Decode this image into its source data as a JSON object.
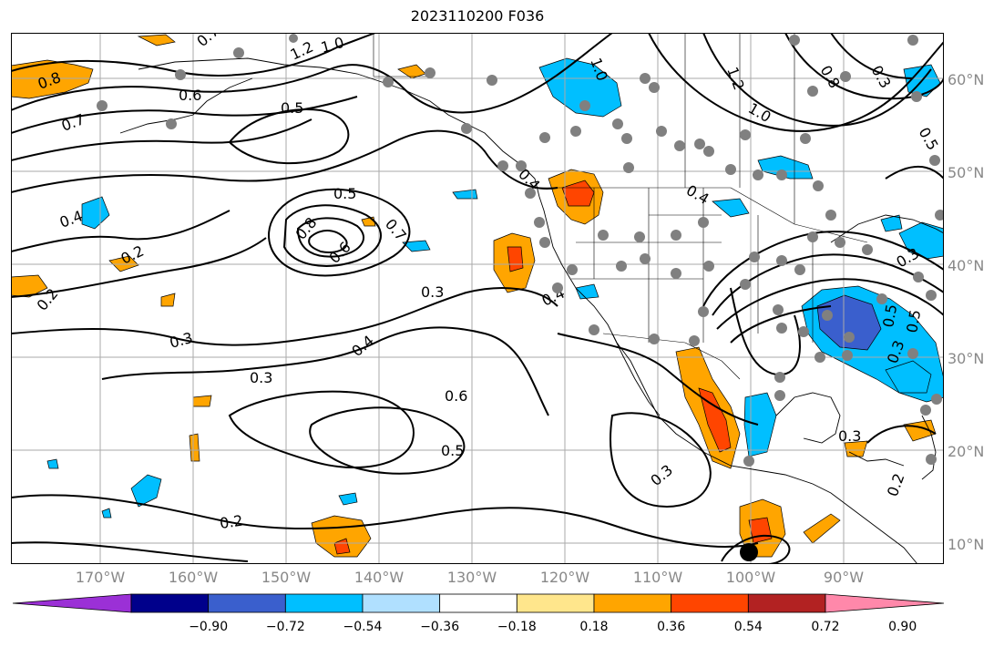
{
  "title": "2023110200 F036",
  "latitude_labels": [
    "60°N",
    "50°N",
    "40°N",
    "30°N",
    "20°N",
    "10°N"
  ],
  "longitude_labels": [
    "170°W",
    "160°W",
    "150°W",
    "140°W",
    "130°W",
    "120°W",
    "110°W",
    "100°W",
    "90°W"
  ],
  "colorbar": {
    "tick_labels": [
      "−0.90",
      "−0.72",
      "−0.54",
      "−0.36",
      "−0.18",
      "0.18",
      "0.36",
      "0.54",
      "0.72",
      "0.90"
    ],
    "colors": [
      "#9b30d6",
      "#00008b",
      "#3a5fcd",
      "#00bfff",
      "#b0e0ff",
      "#ffffff",
      "#ffe68c",
      "#ffa500",
      "#ff4500",
      "#b22222",
      "#ff88aa"
    ]
  },
  "contour_labels": [
    "0.8",
    "0.7",
    "0.6",
    "0.7",
    "1.2",
    "1.0",
    "0.5",
    "0.4",
    "0.2",
    "0.2",
    "0.5",
    "0.8",
    "0.7",
    "0.6",
    "0.3",
    "0.3",
    "0.3",
    "0.4",
    "0.6",
    "0.5",
    "0.2",
    "0.4",
    "0.4",
    "1.0",
    "1.2",
    "1.0",
    "0.8",
    "0.3",
    "0.5",
    "0.4",
    "0.5",
    "0.5",
    "0.3",
    "0.3",
    "0.3",
    "0.2",
    "0.3"
  ],
  "colors": {
    "positive_light": "#ffa500",
    "positive_strong": "#ff4500",
    "negative_light": "#00bfff",
    "negative_strong": "#3a5fcd",
    "station": "#808080",
    "contour": "#000000",
    "grid": "#aaaaaa"
  }
}
